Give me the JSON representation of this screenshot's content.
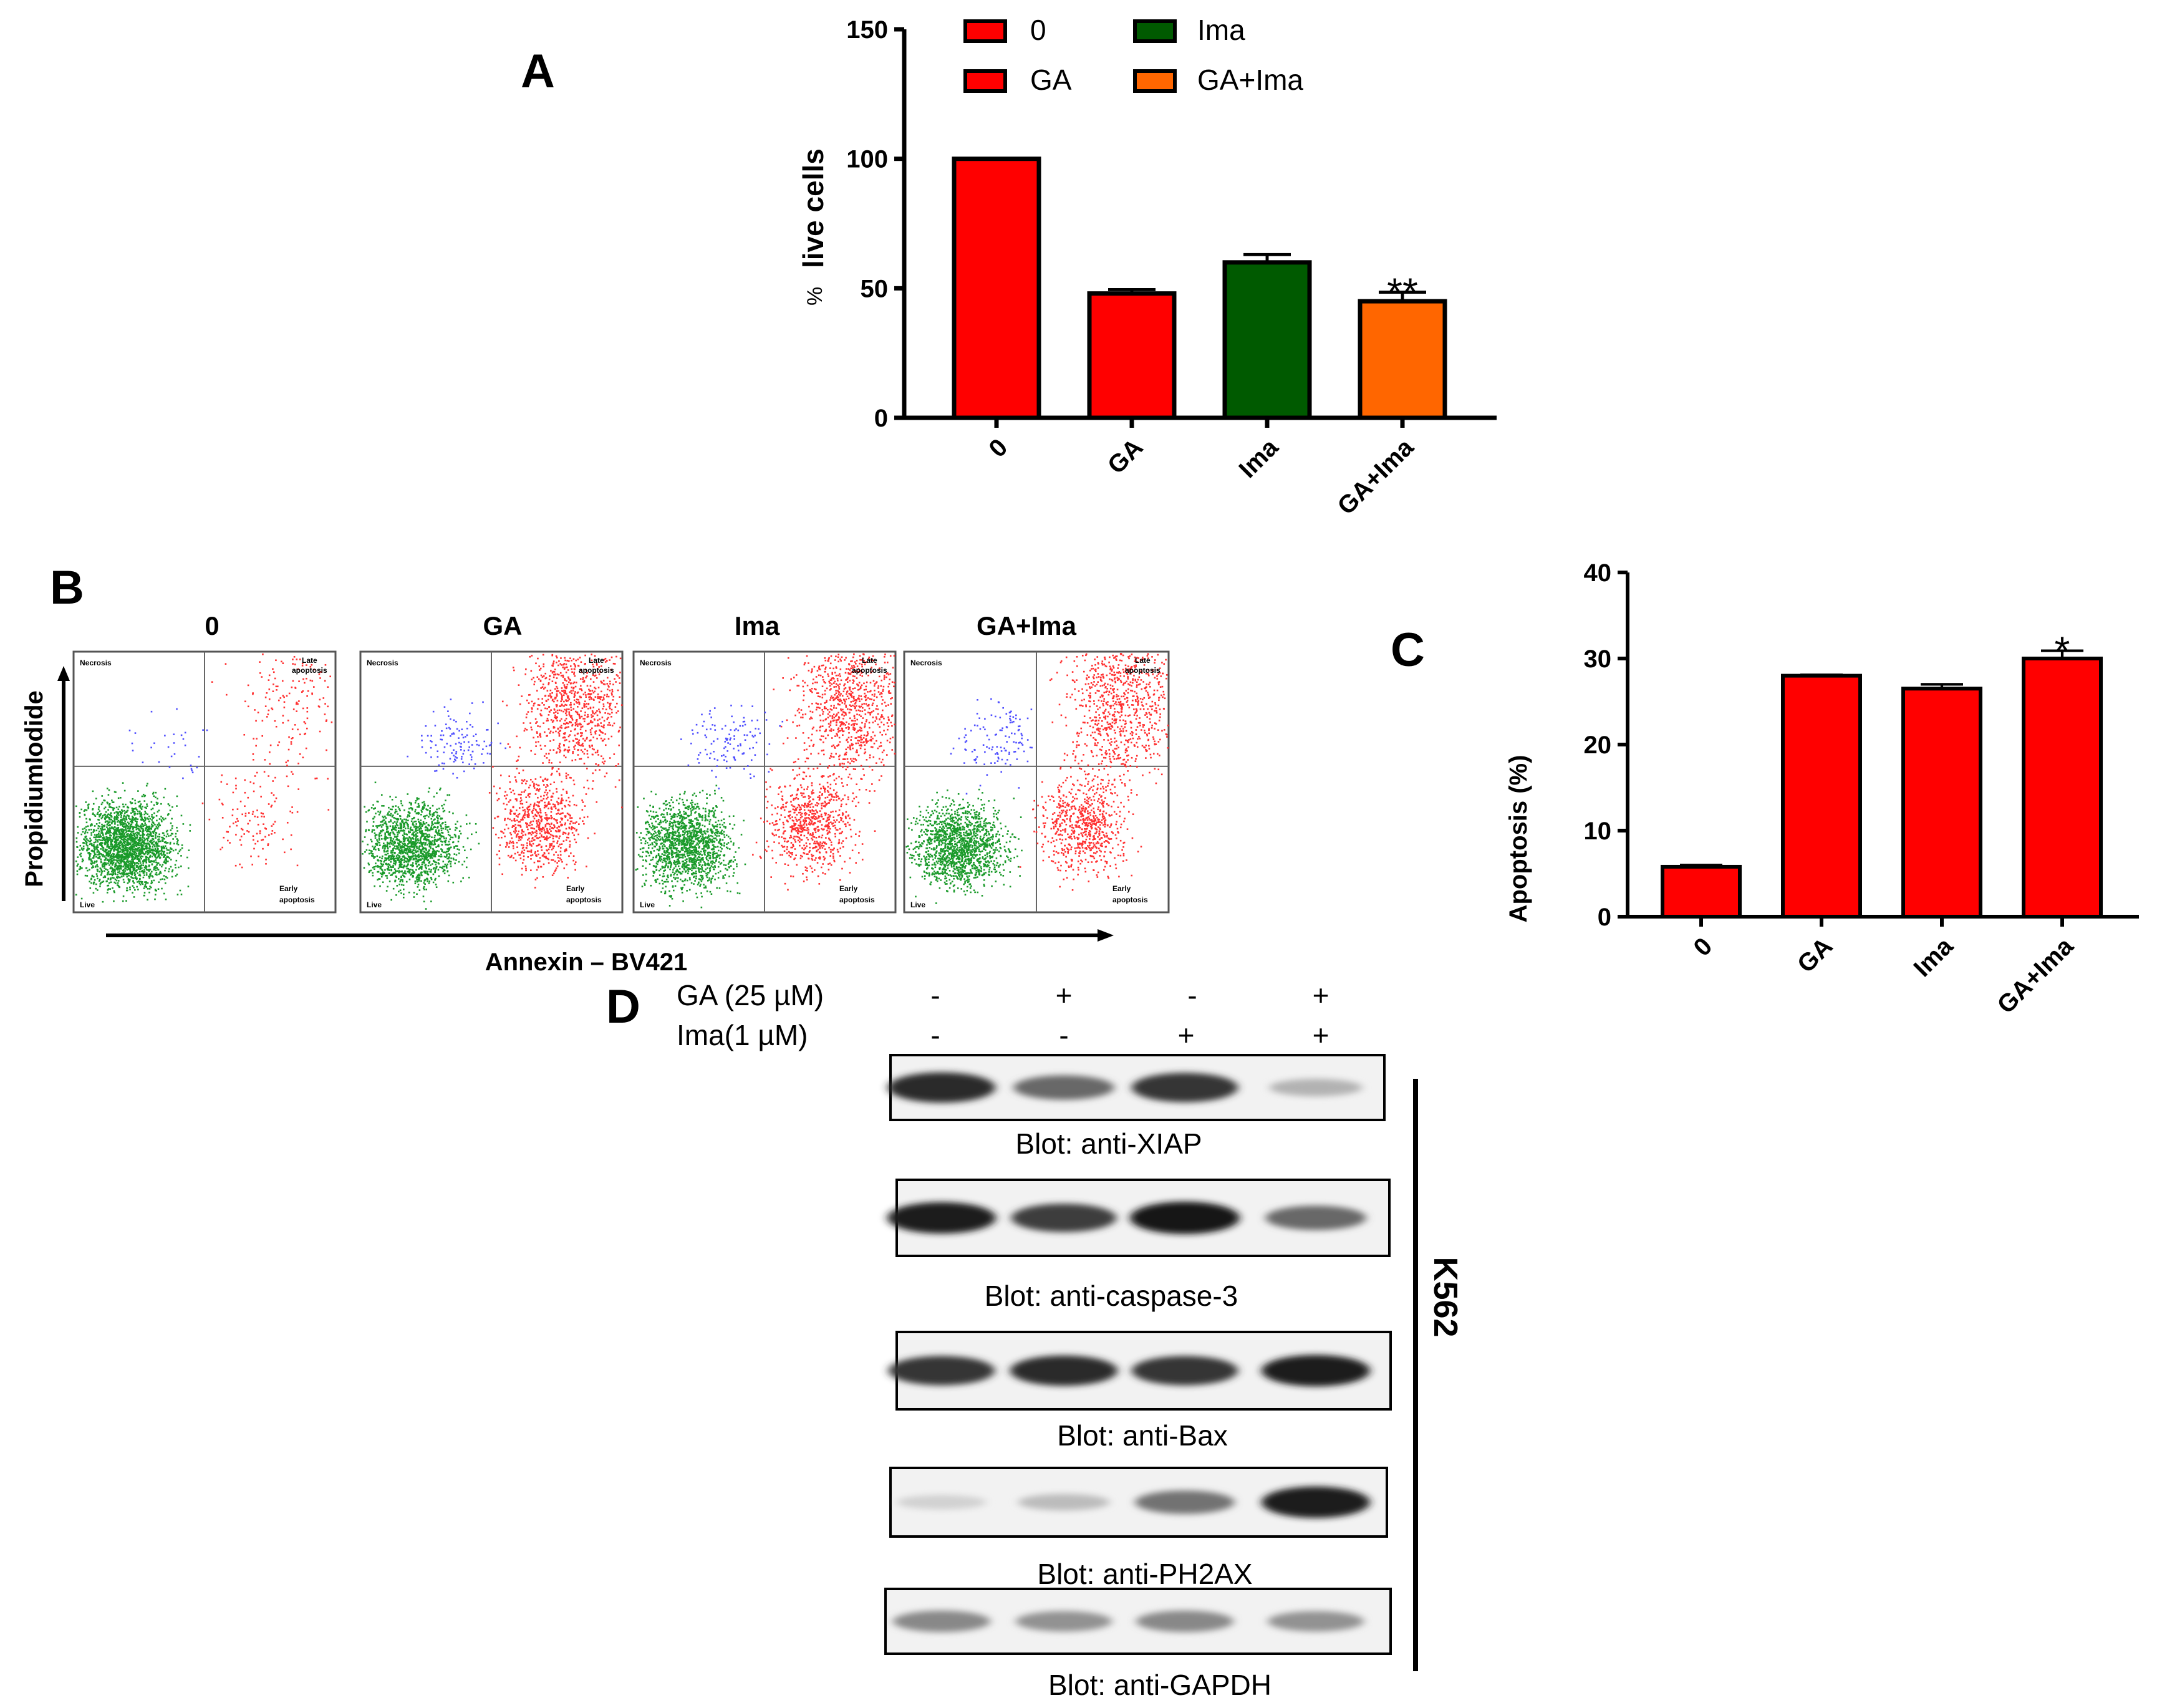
{
  "panels": {
    "a": "A",
    "b": "B",
    "c": "C",
    "d": "D"
  },
  "colors": {
    "red": "#ff0000",
    "green": "#005a00",
    "orange": "#ff6600",
    "dot_green": "#1a9a2a",
    "dot_red": "#ff3030",
    "dot_blue": "#5050ff"
  },
  "chart_data": [
    {
      "type": "bar",
      "panel": "A",
      "categories": [
        "0",
        "GA",
        "Ima",
        "GA+Ima"
      ],
      "values": [
        100,
        48,
        60,
        45
      ],
      "errors": [
        0,
        1.5,
        3,
        3.5
      ],
      "colors": [
        "#ff0000",
        "#ff0000",
        "#005a00",
        "#ff6600"
      ],
      "annotations": [
        "",
        "",
        "",
        "**"
      ],
      "ylabel_prefix": "%",
      "ylabel": "live cells",
      "ylim": [
        0,
        150
      ],
      "yticks": [
        "0",
        "50",
        "100",
        "150"
      ],
      "legend": [
        {
          "label": "0",
          "color": "#ff0000"
        },
        {
          "label": "Ima",
          "color": "#005a00"
        },
        {
          "label": "GA",
          "color": "#ff0000"
        },
        {
          "label": "GA+Ima",
          "color": "#ff6600"
        }
      ],
      "legend_placement": "top-right"
    },
    {
      "type": "bar",
      "panel": "C",
      "categories": [
        "0",
        "GA",
        "Ima",
        "GA+Ima"
      ],
      "values": [
        5.8,
        28,
        26.5,
        30
      ],
      "errors": [
        0.2,
        0.1,
        0.5,
        0.9
      ],
      "colors": [
        "#ff0000",
        "#ff0000",
        "#ff0000",
        "#ff0000"
      ],
      "annotations": [
        "",
        "",
        "",
        "*"
      ],
      "ylabel": "Apoptosis (%)",
      "ylim": [
        0,
        40
      ],
      "yticks": [
        "0",
        "10",
        "20",
        "30",
        "40"
      ]
    }
  ],
  "flow": {
    "titles": [
      "0",
      "GA",
      "Ima",
      "GA+Ima"
    ],
    "quadrants": {
      "tl": "Necrosis",
      "tr1": "Late",
      "tr2": "apoptosis",
      "bl": "Live",
      "br1": "Early",
      "br2": "apoptosis"
    },
    "y_axis": "PropidiumIodide",
    "x_axis": "Annexin – BV421"
  },
  "western": {
    "treatments": [
      {
        "label": "GA (25 µM)",
        "signs": [
          "-",
          "+",
          "-",
          "+"
        ]
      },
      {
        "label": "Ima(1 µM)",
        "signs": [
          "-",
          "-",
          "+",
          "+"
        ]
      }
    ],
    "blots": [
      {
        "label": "Blot: anti-XIAP",
        "intensity": [
          0.9,
          0.6,
          0.85,
          0.25
        ]
      },
      {
        "label": "Blot: anti-caspase-3",
        "intensity": [
          0.95,
          0.8,
          1.0,
          0.6
        ]
      },
      {
        "label": "Blot: anti-Bax",
        "intensity": [
          0.85,
          0.9,
          0.85,
          0.95
        ]
      },
      {
        "label": "Blot: anti-PH2AX",
        "intensity": [
          0.1,
          0.2,
          0.55,
          0.95
        ]
      },
      {
        "label": "Blot: anti-GAPDH",
        "intensity": [
          0.45,
          0.4,
          0.45,
          0.4
        ]
      }
    ],
    "cell_line": "K562"
  }
}
